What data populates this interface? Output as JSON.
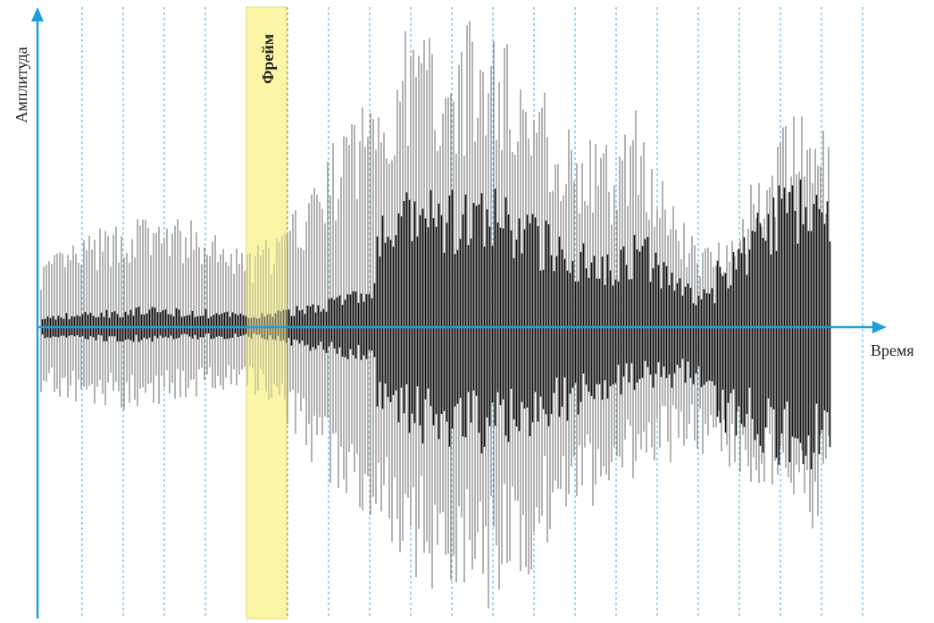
{
  "labels": {
    "y_axis": "Амплитуда",
    "x_axis": "Время",
    "frame": "Фрейм"
  }
}
